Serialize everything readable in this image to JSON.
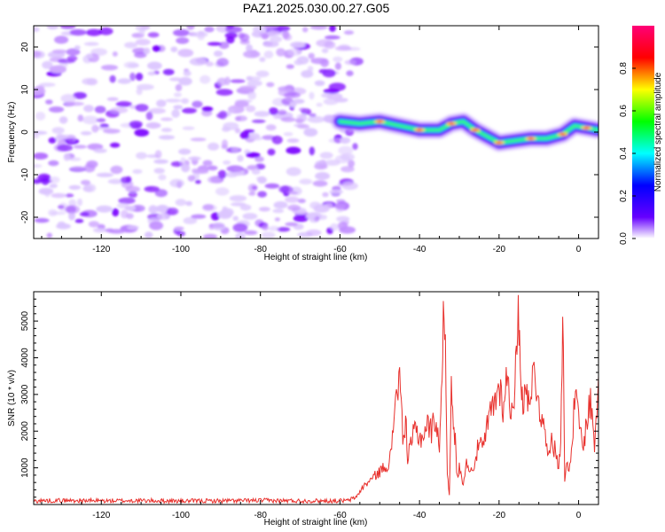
{
  "title": "PAZ1.2025.030.00.27.G05",
  "chart_data": [
    {
      "type": "heatmap",
      "xlabel": "Height of straight line (km)",
      "ylabel": "Frequency (Hz)",
      "xlim": [
        -137,
        5
      ],
      "ylim": [
        -25,
        25
      ],
      "xticks": [
        -120,
        -100,
        -80,
        -60,
        -40,
        -20,
        0
      ],
      "yticks": [
        -20,
        -10,
        0,
        10,
        20
      ],
      "colorbar": {
        "label": "Normalized spectral amplitude",
        "range": [
          0,
          1
        ],
        "ticks": [
          "0.0",
          "0.2",
          "0.4",
          "0.6",
          "0.8"
        ],
        "colormap": "rainbow"
      },
      "noise_region_x": [
        -137,
        -58
      ],
      "signal_track": {
        "x": [
          -60,
          -55,
          -50,
          -45,
          -40,
          -35,
          -32,
          -29,
          -26,
          -23,
          -20,
          -16,
          -12,
          -8,
          -4,
          -1,
          2,
          5
        ],
        "frequency": [
          2.5,
          2,
          2.5,
          1.5,
          0.5,
          0.5,
          2,
          2.5,
          0.5,
          -1,
          -2.5,
          -2,
          -1.5,
          -1.5,
          -0.5,
          1.5,
          1,
          0.5
        ]
      },
      "grid": false
    },
    {
      "type": "line",
      "xlabel": "Height of straight line (km)",
      "ylabel": "SNR (10 * v/v)",
      "xlim": [
        -137,
        5
      ],
      "ylim": [
        0,
        5800
      ],
      "xticks": [
        -120,
        -100,
        -80,
        -60,
        -40,
        -20,
        0
      ],
      "yticks": [
        1000,
        2000,
        3000,
        4000,
        5000
      ],
      "color": "#e8302c",
      "series": [
        {
          "x": [
            -137,
            -130,
            -120,
            -110,
            -100,
            -90,
            -80,
            -70,
            -62,
            -58,
            -56,
            -54,
            -52,
            -50,
            -48,
            -47,
            -46,
            -45,
            -44,
            -43.5,
            -43,
            -42,
            -41,
            -40,
            -39,
            -38,
            -37,
            -36,
            -35,
            -34.5,
            -34,
            -33.5,
            -33,
            -32.5,
            -32,
            -31.5,
            -31,
            -30.5,
            -30,
            -29,
            -28,
            -27,
            -26,
            -25,
            -24,
            -23,
            -22,
            -21,
            -20,
            -19,
            -18,
            -17,
            -16,
            -15.5,
            -15,
            -14.5,
            -14,
            -13,
            -12,
            -11,
            -10,
            -9,
            -8,
            -7,
            -6,
            -5,
            -4.5,
            -4,
            -3.5,
            -3,
            -2,
            -1,
            0,
            1,
            2,
            3,
            4,
            5
          ],
          "values": [
            100,
            110,
            100,
            105,
            95,
            100,
            110,
            100,
            100,
            105,
            200,
            500,
            700,
            900,
            1100,
            1400,
            3100,
            3400,
            1600,
            2500,
            1200,
            1700,
            2100,
            1800,
            1900,
            2200,
            2000,
            2400,
            1600,
            2700,
            5800,
            4200,
            900,
            300,
            3000,
            2100,
            1700,
            700,
            1000,
            600,
            1200,
            900,
            1200,
            1700,
            1500,
            2100,
            2600,
            2800,
            3300,
            2700,
            3500,
            2500,
            3300,
            4200,
            5200,
            3600,
            2800,
            3000,
            3200,
            3600,
            2800,
            2200,
            1600,
            1700,
            1500,
            1100,
            1800,
            5450,
            600,
            1200,
            1000,
            2900,
            2400,
            1500,
            2200,
            2900,
            1600,
            3500
          ]
        }
      ]
    }
  ]
}
